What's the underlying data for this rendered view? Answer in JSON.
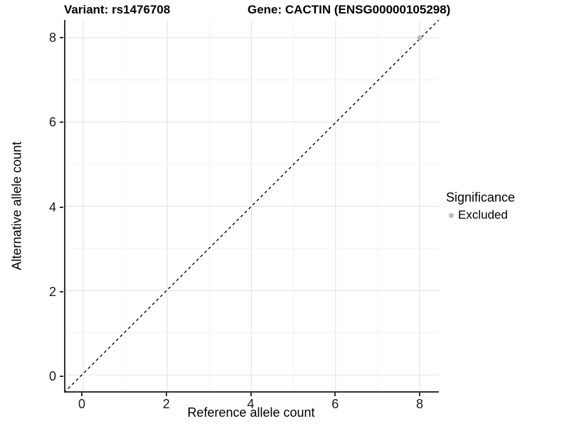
{
  "header": {
    "variant_title": "Variant: rs1476708",
    "gene_title": "Gene: CACTIN (ENSG00000105298)"
  },
  "axes": {
    "x": {
      "label": "Reference allele count",
      "tick_labels": [
        "0",
        "2",
        "4",
        "6",
        "8"
      ]
    },
    "y": {
      "label": "Alternative allele count",
      "tick_labels": [
        "0",
        "2",
        "4",
        "6",
        "8"
      ]
    }
  },
  "legend": {
    "title": "Significance",
    "items": [
      {
        "label": "Excluded",
        "color": "#bdbdbd"
      }
    ]
  },
  "colors": {
    "background": "#ffffff",
    "axis_line": "#333333",
    "grid_major": "#e5e5e5",
    "grid_minor": "#f2f2f2",
    "reference_line": "#000000",
    "point_excluded": "#bdbdbd"
  },
  "chart_data": {
    "type": "scatter",
    "title": "Variant: rs1476708 | Gene: CACTIN (ENSG00000105298)",
    "xlabel": "Reference allele count",
    "ylabel": "Alternative allele count",
    "xlim": [
      -0.42,
      8.45
    ],
    "ylim": [
      -0.39,
      8.42
    ],
    "x_ticks": [
      0,
      2,
      4,
      6,
      8
    ],
    "x_minor_ticks": [
      1,
      3,
      5,
      7
    ],
    "y_ticks": [
      0,
      2,
      4,
      6,
      8
    ],
    "y_minor_ticks": [
      1,
      3,
      5,
      7
    ],
    "grid": true,
    "legend_position": "right",
    "series": [
      {
        "name": "Excluded",
        "color": "#bdbdbd",
        "points": [
          {
            "x": 8,
            "y": 8
          }
        ]
      }
    ],
    "reference_line": {
      "kind": "identity",
      "equation": "y = x",
      "style": "dashed",
      "color": "#000000"
    }
  }
}
